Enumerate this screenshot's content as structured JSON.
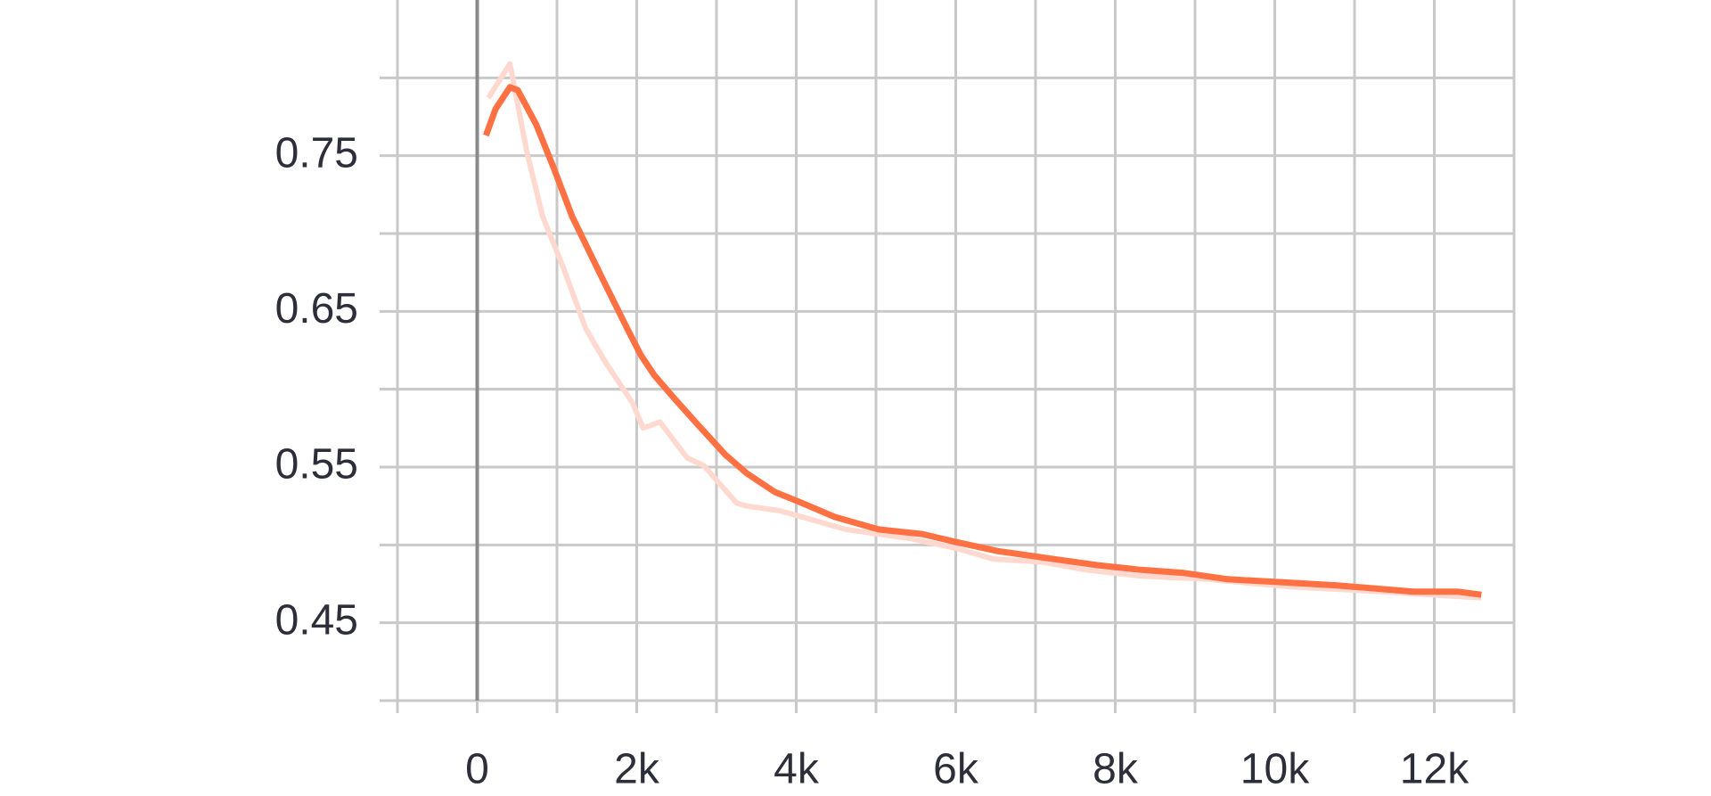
{
  "chart_data": {
    "type": "line",
    "xlim": [
      -1000,
      13000
    ],
    "xticks": [
      0,
      {
        "value": 2000,
        "label": "2k"
      },
      {
        "value": 4000,
        "label": "4k"
      },
      {
        "value": 6000,
        "label": "6k"
      },
      {
        "value": 8000,
        "label": "8k"
      },
      {
        "value": 10000,
        "label": "10k"
      },
      {
        "value": 12000,
        "label": "12k"
      }
    ],
    "ylim": [
      0.4,
      0.85
    ],
    "yticks": [
      0.45,
      0.55,
      0.65,
      0.75
    ],
    "grid": true,
    "series": [
      {
        "color": "#ffd9cf",
        "x": [
          140,
          410,
          620,
          820,
          1080,
          1360,
          1600,
          1950,
          2080,
          2290,
          2630,
          2840,
          3250,
          3380,
          3790,
          4140,
          4620,
          5440,
          5990,
          6470,
          7080,
          7630,
          8320,
          9140,
          10230,
          11330,
          12590
        ],
        "values": [
          0.787,
          0.809,
          0.753,
          0.711,
          0.678,
          0.639,
          0.618,
          0.591,
          0.575,
          0.579,
          0.556,
          0.551,
          0.527,
          0.525,
          0.522,
          0.517,
          0.51,
          0.504,
          0.498,
          0.491,
          0.489,
          0.484,
          0.48,
          0.478,
          0.473,
          0.47,
          0.466
        ]
      },
      {
        "color": "#ff7043",
        "x": [
          110,
          230,
          410,
          510,
          740,
          960,
          1190,
          1580,
          1880,
          2050,
          2220,
          2490,
          2770,
          3110,
          3380,
          3730,
          4070,
          4480,
          5030,
          5580,
          5990,
          6530,
          7080,
          7770,
          8320,
          8860,
          9410,
          10100,
          10780,
          11740,
          12290,
          12590
        ],
        "values": [
          0.763,
          0.78,
          0.794,
          0.792,
          0.77,
          0.742,
          0.711,
          0.67,
          0.639,
          0.622,
          0.609,
          0.593,
          0.577,
          0.558,
          0.546,
          0.534,
          0.527,
          0.518,
          0.51,
          0.507,
          0.502,
          0.496,
          0.492,
          0.487,
          0.484,
          0.482,
          0.478,
          0.476,
          0.474,
          0.47,
          0.47,
          0.468
        ]
      }
    ]
  }
}
